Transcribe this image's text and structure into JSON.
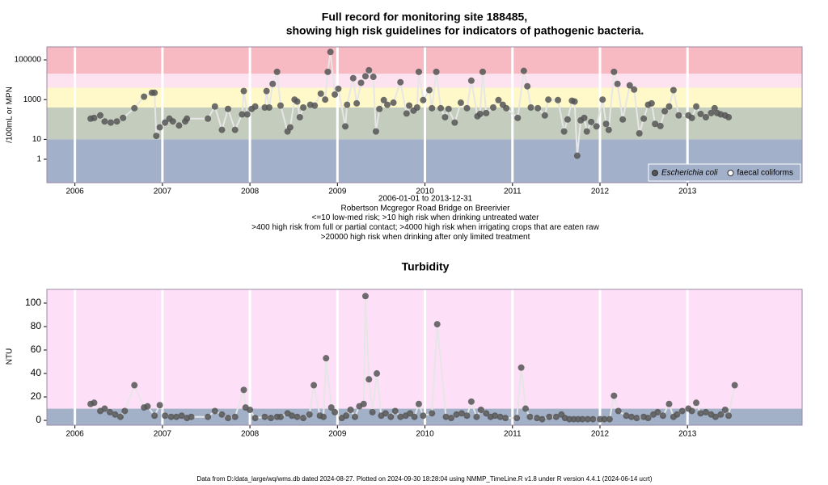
{
  "chart_data": [
    {
      "type": "line",
      "title": [
        "Full record for monitoring site 188485,",
        "showing high risk guidelines for indicators of pathogenic bacteria."
      ],
      "ylabel": "/100mL or MPN",
      "log_y": true,
      "notes": [
        "2006-01-01 to 2013-12-31",
        "Robertson Mcgregor Road Bridge on Breerivier",
        "<=10 low-med risk; >10 high risk when drinking untreated water",
        ">400 high risk from full or partial contact; >4000 high risk when irrigating crops that are eaten raw",
        ">20000 high risk when drinking after only limited treatment"
      ],
      "legend": [
        {
          "label": "Escherichia coli",
          "marker": "filled"
        },
        {
          "label": "faecal coliforms",
          "marker": "open"
        }
      ],
      "bands": {
        "thresholds": [
          10,
          400,
          4000,
          20000
        ],
        "colors": [
          "#a2b0c9",
          "#c4ccbd",
          "#fff8c8",
          "#fde2f0",
          "#f7b9c2"
        ]
      },
      "xlim": [
        2005.68,
        2014.31
      ],
      "xticks": [
        2006,
        2007,
        2008,
        2009,
        2010,
        2011,
        2012,
        2013
      ],
      "ylim": [
        0.066,
        450000
      ],
      "yticks": [
        1,
        10,
        1000,
        100000
      ],
      "series": [
        {
          "name": "Escherichia coli",
          "color": "#555555",
          "x": [
            2006.18,
            2006.22,
            2006.29,
            2006.34,
            2006.41,
            2006.48,
            2006.55,
            2006.68,
            2006.79,
            2006.88,
            2006.91,
            2006.93,
            2006.97,
            2007.03,
            2007.08,
            2007.12,
            2007.19,
            2007.26,
            2007.28,
            2007.52,
            2007.6,
            2007.68,
            2007.75,
            2007.83,
            2007.91,
            2007.93,
            2007.97,
            2008.02,
            2008.06,
            2008.17,
            2008.19,
            2008.22,
            2008.26,
            2008.31,
            2008.35,
            2008.43,
            2008.46,
            2008.51,
            2008.54,
            2008.57,
            2008.61,
            2008.69,
            2008.74,
            2008.81,
            2008.86,
            2008.89,
            2008.92,
            2008.97,
            2009.01,
            2009.09,
            2009.11,
            2009.18,
            2009.22,
            2009.27,
            2009.32,
            2009.36,
            2009.41,
            2009.44,
            2009.48,
            2009.53,
            2009.57,
            2009.64,
            2009.72,
            2009.79,
            2009.82,
            2009.87,
            2009.91,
            2009.93,
            2009.98,
            2010.05,
            2010.08,
            2010.13,
            2010.18,
            2010.23,
            2010.27,
            2010.34,
            2010.41,
            2010.48,
            2010.53,
            2010.6,
            2010.63,
            2010.66,
            2010.7,
            2010.78,
            2010.84,
            2010.89,
            2010.93,
            2011.06,
            2011.13,
            2011.17,
            2011.21,
            2011.29,
            2011.37,
            2011.41,
            2011.52,
            2011.59,
            2011.63,
            2011.68,
            2011.71,
            2011.74,
            2011.78,
            2011.82,
            2011.85,
            2011.9,
            2011.96,
            2012.03,
            2012.07,
            2012.1,
            2012.16,
            2012.2,
            2012.26,
            2012.34,
            2012.39,
            2012.45,
            2012.5,
            2012.55,
            2012.59,
            2012.63,
            2012.69,
            2012.74,
            2012.79,
            2012.84,
            2012.9,
            2013.01,
            2013.05,
            2013.1,
            2013.15,
            2013.21,
            2013.27,
            2013.31,
            2013.34,
            2013.38,
            2013.43,
            2013.47
          ],
          "values": [
            110,
            120,
            160,
            80,
            70,
            80,
            120,
            370,
            1400,
            2200,
            2200,
            15,
            40,
            70,
            110,
            80,
            50,
            80,
            110,
            110,
            450,
            30,
            340,
            30,
            180,
            2700,
            180,
            340,
            450,
            400,
            2700,
            400,
            6200,
            25000,
            500,
            25,
            40,
            1000,
            800,
            130,
            400,
            550,
            500,
            2000,
            1000,
            25000,
            250000,
            1800,
            3500,
            45,
            550,
            12000,
            650,
            7000,
            15000,
            30000,
            14000,
            25,
            340,
            950,
            550,
            700,
            7500,
            200,
            500,
            280,
            400,
            25000,
            950,
            3000,
            370,
            25000,
            370,
            130,
            340,
            70,
            700,
            370,
            9000,
            145,
            190,
            25000,
            210,
            400,
            950,
            550,
            370,
            120,
            28000,
            4700,
            400,
            370,
            160,
            1000,
            950,
            25,
            100,
            880,
            800,
            1.5,
            90,
            120,
            25,
            75,
            45,
            1000,
            60,
            30,
            25000,
            6200,
            100,
            5200,
            3200,
            20,
            110,
            550,
            650,
            60,
            47,
            260,
            450,
            3000,
            160,
            160,
            120,
            450,
            190,
            130,
            210,
            370,
            210,
            180,
            160,
            130
          ]
        }
      ]
    },
    {
      "type": "line",
      "title": [
        "Turbidity"
      ],
      "ylabel": "NTU",
      "log_y": false,
      "bands": {
        "thresholds": [
          10
        ],
        "colors": [
          "#a3b1c8",
          "#fde0f7"
        ]
      },
      "xlim": [
        2005.68,
        2014.31
      ],
      "xticks": [
        2006,
        2007,
        2008,
        2009,
        2010,
        2011,
        2012,
        2013
      ],
      "ylim": [
        -4.1,
        111.7
      ],
      "yticks": [
        0,
        20,
        40,
        60,
        80,
        100
      ],
      "series": [
        {
          "name": "Turbidity",
          "color": "#555555",
          "x": [
            2006.18,
            2006.22,
            2006.29,
            2006.34,
            2006.4,
            2006.46,
            2006.52,
            2006.57,
            2006.68,
            2006.79,
            2006.83,
            2006.91,
            2006.97,
            2007.03,
            2007.1,
            2007.16,
            2007.22,
            2007.28,
            2007.33,
            2007.52,
            2007.6,
            2007.68,
            2007.75,
            2007.83,
            2007.93,
            2007.95,
            2008.0,
            2008.06,
            2008.17,
            2008.24,
            2008.31,
            2008.35,
            2008.43,
            2008.48,
            2008.54,
            2008.61,
            2008.68,
            2008.73,
            2008.8,
            2008.84,
            2008.87,
            2008.93,
            2008.97,
            2009.05,
            2009.1,
            2009.15,
            2009.2,
            2009.25,
            2009.3,
            2009.32,
            2009.36,
            2009.4,
            2009.45,
            2009.5,
            2009.55,
            2009.61,
            2009.66,
            2009.72,
            2009.78,
            2009.83,
            2009.88,
            2009.93,
            2009.98,
            2010.08,
            2010.14,
            2010.24,
            2010.3,
            2010.36,
            2010.42,
            2010.48,
            2010.53,
            2010.59,
            2010.64,
            2010.7,
            2010.75,
            2010.8,
            2010.86,
            2010.92,
            2011.05,
            2011.1,
            2011.15,
            2011.2,
            2011.28,
            2011.34,
            2011.42,
            2011.5,
            2011.56,
            2011.6,
            2011.65,
            2011.7,
            2011.75,
            2011.8,
            2011.86,
            2011.92,
            2012.0,
            2012.05,
            2012.11,
            2012.16,
            2012.21,
            2012.3,
            2012.36,
            2012.42,
            2012.5,
            2012.55,
            2012.61,
            2012.66,
            2012.72,
            2012.79,
            2012.84,
            2012.88,
            2012.94,
            2013.01,
            2013.05,
            2013.1,
            2013.15,
            2013.21,
            2013.27,
            2013.32,
            2013.38,
            2013.43,
            2013.47,
            2013.54
          ],
          "values": [
            14,
            15,
            8,
            10,
            7,
            5,
            3,
            8,
            30,
            11,
            12,
            4,
            13,
            4,
            3,
            3,
            4,
            2,
            3,
            3,
            8,
            5,
            2,
            3,
            26,
            11,
            9,
            2,
            3,
            2,
            3,
            3,
            6,
            4,
            3,
            2,
            5,
            30,
            4,
            3,
            53,
            11,
            7,
            2,
            4,
            9,
            3,
            12,
            14,
            106,
            35,
            7,
            40,
            4,
            6,
            3,
            8,
            3,
            4,
            6,
            3,
            14,
            4,
            6,
            82,
            3,
            2,
            5,
            6,
            4,
            16,
            3,
            9,
            6,
            3,
            4,
            3,
            2,
            2,
            45,
            10,
            3,
            2,
            1,
            3,
            3,
            5,
            2,
            1,
            1,
            1,
            1,
            1,
            1,
            1,
            1,
            1,
            21,
            8,
            4,
            3,
            2,
            3,
            2,
            5,
            7,
            4,
            14,
            3,
            5,
            8,
            10,
            8,
            15,
            6,
            7,
            5,
            3,
            5,
            9,
            4,
            30
          ]
        }
      ]
    }
  ],
  "footer": "Data from D:/data_large/wq/wms.db dated 2024-08-27. Plotted on 2024-09-30 18:28:04 using NMMP_TimeLine.R v1.8 under R version 4.4.1 (2024-06-14 ucrt)"
}
